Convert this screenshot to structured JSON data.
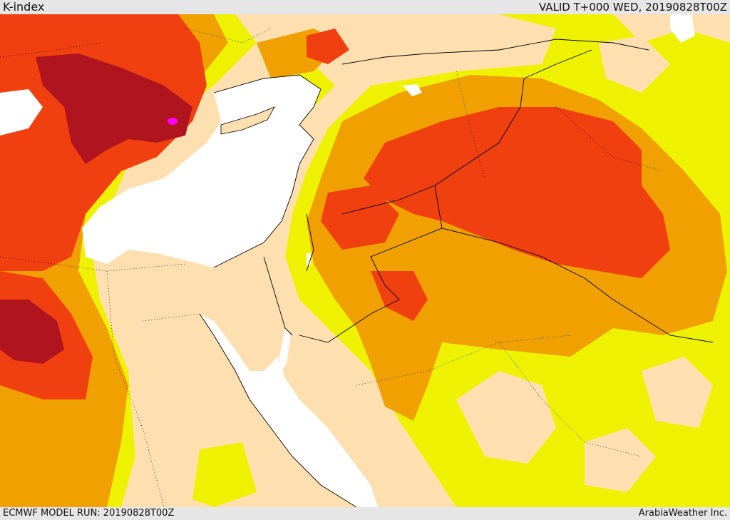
{
  "header": {
    "title": "K-index",
    "valid": "VALID T+000 WED, 20190828T00Z"
  },
  "footer": {
    "model_run": "ECMWF MODEL RUN: 20190828T00Z",
    "credit": "ArabiaWeather Inc."
  },
  "colors": {
    "sea": "#ffffff",
    "land_low": "#fee0b0",
    "band_yellow": "#eef200",
    "band_orange": "#f0a000",
    "band_redorange": "#f04010",
    "band_darkred": "#b0141e",
    "peak_magenta": "#ff00ff",
    "border": "#000000"
  }
}
